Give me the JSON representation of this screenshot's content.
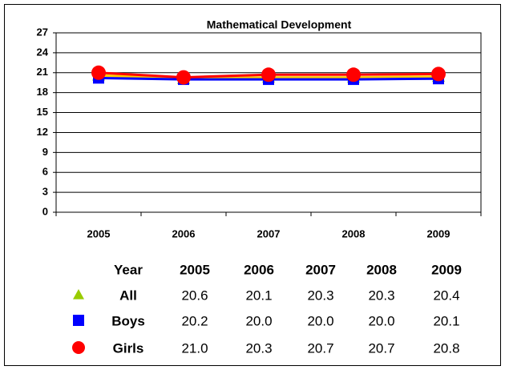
{
  "chart_data": {
    "type": "line",
    "title": "Mathematical Development",
    "categories": [
      "2005",
      "2006",
      "2007",
      "2008",
      "2009"
    ],
    "ylim": [
      0,
      27
    ],
    "yticks": [
      0,
      3,
      6,
      9,
      12,
      15,
      18,
      21,
      24,
      27
    ],
    "grid": true,
    "table_header": "Year",
    "series": [
      {
        "name": "All",
        "color": "#99cc00",
        "line_color": "#ffcc00",
        "marker": "triangle",
        "values": [
          20.6,
          20.1,
          20.3,
          20.3,
          20.4
        ],
        "value_labels": [
          "20.6",
          "20.1",
          "20.3",
          "20.3",
          "20.4"
        ]
      },
      {
        "name": "Boys",
        "color": "#0000ff",
        "line_color": "#0000ff",
        "marker": "square",
        "values": [
          20.2,
          20.0,
          20.0,
          20.0,
          20.1
        ],
        "value_labels": [
          "20.2",
          "20.0",
          "20.0",
          "20.0",
          "20.1"
        ]
      },
      {
        "name": "Girls",
        "color": "#ff0000",
        "line_color": "#ff0000",
        "marker": "circle",
        "values": [
          21.0,
          20.3,
          20.7,
          20.7,
          20.8
        ],
        "value_labels": [
          "21.0",
          "20.3",
          "20.7",
          "20.7",
          "20.8"
        ]
      }
    ]
  }
}
